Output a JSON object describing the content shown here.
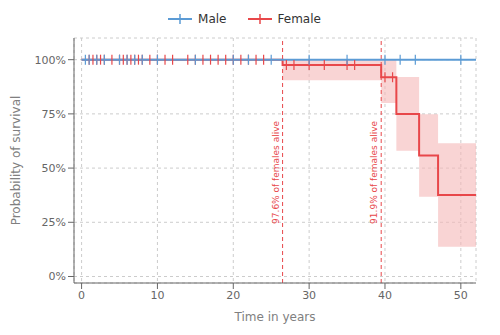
{
  "chart_data": {
    "type": "step",
    "title": "",
    "xlabel": "Time in years",
    "ylabel": "Probability of survival",
    "xlim": [
      -1,
      52
    ],
    "ylim": [
      -0.03,
      1.1
    ],
    "xticks": [
      0,
      10,
      20,
      30,
      40,
      50
    ],
    "yticks": [
      {
        "value": 0,
        "label": "0%"
      },
      {
        "value": 0.25,
        "label": "25%"
      },
      {
        "value": 0.5,
        "label": "50%"
      },
      {
        "value": 0.75,
        "label": "75%"
      },
      {
        "value": 1.0,
        "label": "100%"
      }
    ],
    "grid": true,
    "legend": "top",
    "series": [
      {
        "name": "Male",
        "color": "#5b9bd5",
        "marker": "|",
        "x": [
          0,
          44,
          52
        ],
        "values": [
          1.0,
          1.0,
          1.0
        ],
        "censor": [
          {
            "x": [
              0.5,
              1,
              2,
              3,
              5,
              6,
              7,
              8,
              10,
              15,
              20,
              22,
              25,
              30,
              35,
              40,
              42,
              44,
              50
            ],
            "y": 1.0
          }
        ]
      },
      {
        "name": "Female",
        "color": "#e8474a",
        "marker": "|",
        "x": [
          0,
          26.5,
          39.5,
          41.5,
          44.5,
          47.0,
          52
        ],
        "values": [
          1.0,
          0.976,
          0.919,
          0.75,
          0.558,
          0.376,
          0.376
        ],
        "ci_x": [
          26.5,
          39.5,
          41.5,
          44.5,
          47.0,
          52
        ],
        "ci_upper": [
          1.0,
          1.0,
          0.92,
          0.748,
          0.615,
          0.615
        ],
        "ci_lower": [
          0.905,
          0.8,
          0.58,
          0.368,
          0.137,
          0.137
        ],
        "ci_color": "#f5b8b8",
        "censor": [
          {
            "x": [
              1,
              1.5,
              2,
              2.5,
              3,
              4,
              5,
              5.5,
              6,
              6.5,
              7,
              7.5,
              8,
              9,
              10,
              11,
              12,
              14,
              15,
              16,
              17,
              18,
              19,
              20,
              21,
              22,
              23,
              24
            ],
            "y": 1.0
          },
          {
            "x": [
              27,
              28,
              30,
              32,
              35,
              36
            ],
            "y": 0.976
          },
          {
            "x": [
              40,
              41
            ],
            "y": 0.919
          }
        ]
      }
    ],
    "annotations": [
      {
        "x": 26.5,
        "y": 0.48,
        "label": "97.6% of females alive",
        "color": "#e8474a",
        "line_style": "dashed"
      },
      {
        "x": 39.5,
        "y": 0.48,
        "label": "91.9% of females alive",
        "color": "#e8474a",
        "line_style": "dashed"
      }
    ]
  }
}
